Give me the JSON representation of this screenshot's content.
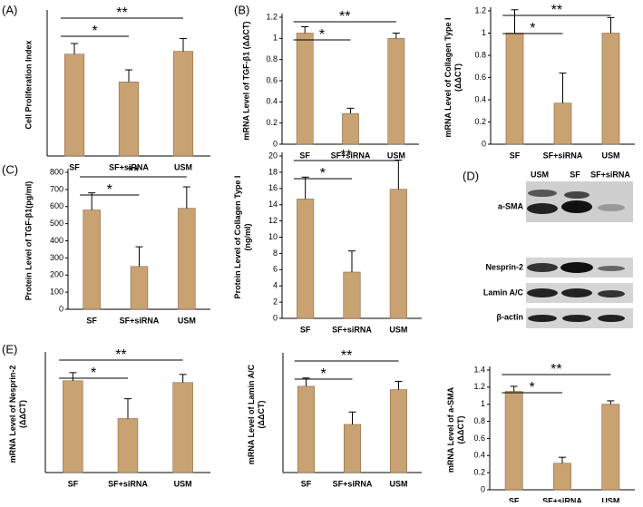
{
  "chart_data": [
    {
      "type": "bar",
      "panel_label": "(A)",
      "y_label": [
        "Cell Proliferation Index"
      ],
      "categories": [
        "SF",
        "SF+siRNA",
        "USM"
      ],
      "values": [
        1.43,
        1.04,
        1.47
      ],
      "errors": [
        0.15,
        0.17,
        0.18
      ],
      "ylim": [
        0,
        2
      ],
      "color": "#c9a273",
      "annotations": [
        "*",
        "**"
      ]
    },
    {
      "type": "bar",
      "panel_label": "(B)",
      "y_label": [
        "mRNA Level of TGF-β1 (ΔΔCT)"
      ],
      "categories": [
        "SF",
        "SF+siRNA",
        "USM"
      ],
      "values": [
        1.05,
        0.29,
        1.0
      ],
      "errors": [
        0.06,
        0.05,
        0.05
      ],
      "ylim": [
        0,
        1.2
      ],
      "yticks": [
        0,
        0.2,
        0.4,
        0.6,
        0.8,
        1,
        1.2
      ],
      "color": "#c9a273",
      "annotations": [
        "*",
        "**"
      ]
    },
    {
      "type": "bar",
      "y_label": [
        "mRNA Level of Collagen Type I",
        "(ΔΔCT)"
      ],
      "categories": [
        "SF",
        "SF+siRNA",
        "USM"
      ],
      "values": [
        1.0,
        0.37,
        1.0
      ],
      "errors": [
        0.21,
        0.27,
        0.14
      ],
      "ylim": [
        0,
        1.2
      ],
      "yticks": [
        0,
        0.2,
        0.4,
        0.6,
        0.8,
        1,
        1.2
      ],
      "color": "#c9a273",
      "annotations": [
        "*",
        "**"
      ]
    },
    {
      "type": "bar",
      "panel_label": "(C)",
      "y_label": [
        "Protein Level of TGF-β1(pg/ml)"
      ],
      "categories": [
        "SF",
        "SF+siRNA",
        "USM"
      ],
      "values": [
        580,
        250,
        590
      ],
      "errors": [
        100,
        115,
        125
      ],
      "ylim": [
        0,
        800
      ],
      "yticks": [
        0,
        100,
        200,
        300,
        400,
        500,
        600,
        700,
        800
      ],
      "color": "#c9a273",
      "annotations": [
        "*",
        "**"
      ]
    },
    {
      "type": "bar",
      "y_label": [
        "Protein Level of Collagen Type I",
        "(ng/ml)"
      ],
      "categories": [
        "SF",
        "SF+siRNA",
        "USM"
      ],
      "values": [
        14.7,
        5.7,
        15.9
      ],
      "errors": [
        2.7,
        2.6,
        3.6
      ],
      "ylim": [
        0,
        20
      ],
      "yticks": [
        0,
        2,
        4,
        6,
        8,
        10,
        12,
        14,
        16,
        18,
        20
      ],
      "color": "#c9a273",
      "annotations": [
        "*",
        "**"
      ]
    },
    {
      "type": "bar",
      "panel_label": "(E)",
      "y_label": [
        "mRNA Level of Nesprin-2",
        "(ΔΔCT)"
      ],
      "categories": [
        "SF",
        "SF+siRNA",
        "USM"
      ],
      "values": [
        1.02,
        0.6,
        1.0
      ],
      "errors": [
        0.09,
        0.22,
        0.09
      ],
      "ylim": [
        0,
        1.3
      ],
      "color": "#c9a273",
      "annotations": [
        "*",
        "**"
      ]
    },
    {
      "type": "bar",
      "y_label": [
        "mRNA Level of Lamin A/C",
        "(ΔΔCT)"
      ],
      "categories": [
        "SF",
        "SF+siRNA",
        "USM"
      ],
      "values": [
        1.04,
        0.58,
        1.0
      ],
      "errors": [
        0.1,
        0.15,
        0.1
      ],
      "ylim": [
        0,
        1.4
      ],
      "color": "#c9a273",
      "annotations": [
        "*",
        "**"
      ]
    },
    {
      "type": "bar",
      "y_label": [
        "mRNA Level of a-SMA",
        "(ΔΔCT)"
      ],
      "categories": [
        "SF",
        "SF+siRNA",
        "USM"
      ],
      "values": [
        1.15,
        0.31,
        1.0
      ],
      "errors": [
        0.06,
        0.07,
        0.04
      ],
      "ylim": [
        0,
        1.4
      ],
      "yticks": [
        0,
        0.2,
        0.4,
        0.6,
        0.8,
        1,
        1.2,
        1.4
      ],
      "color": "#c9a273",
      "annotations": [
        "*",
        "**"
      ]
    }
  ],
  "blot": {
    "panel_label": "(D)",
    "lanes": [
      "USM",
      "SF",
      "SF+siRNA"
    ],
    "rows": [
      "a-SMA",
      "Nesprin-2",
      "Lamin A/C",
      "β-actin"
    ]
  }
}
